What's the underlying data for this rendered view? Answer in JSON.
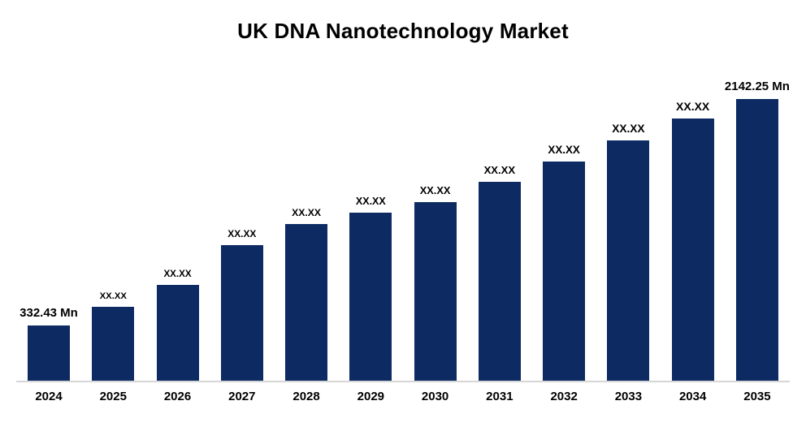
{
  "chart_data": {
    "type": "bar",
    "title": "UK DNA Nanotechnology Market",
    "categories": [
      "2024",
      "2025",
      "2026",
      "2027",
      "2028",
      "2029",
      "2030",
      "2031",
      "2032",
      "2033",
      "2034",
      "2035"
    ],
    "values": [
      332.43,
      null,
      null,
      null,
      null,
      null,
      null,
      null,
      null,
      null,
      null,
      2142.25
    ],
    "bar_labels": [
      "332.43 Mn",
      "XX.XX",
      "XX.XX",
      "XX.XX",
      "XX.XX",
      "XX.XX",
      "XX.XX",
      "XX.XX",
      "XX.XX",
      "XX.XX",
      "XX.XX",
      "2142.25 Mn"
    ],
    "relative_heights": [
      0.196,
      0.262,
      0.34,
      0.481,
      0.556,
      0.597,
      0.634,
      0.706,
      0.778,
      0.853,
      0.931,
      1.0
    ],
    "unit": "Mn",
    "bar_color": "#0d2a63",
    "axis_line_color": "#d6d6d6",
    "xlabel": "",
    "ylabel": "",
    "legend": "none",
    "grid": false
  }
}
